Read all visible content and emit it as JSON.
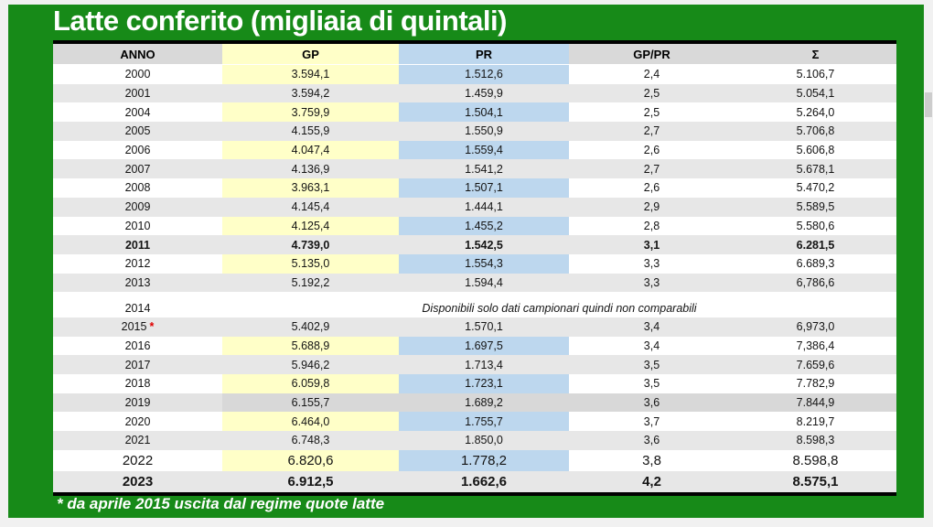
{
  "header": {
    "title": "Latte conferito (migliaia di quintali)"
  },
  "table": {
    "columns": [
      "ANNO",
      "GP",
      "PR",
      "GP/PR",
      "Σ"
    ],
    "rows": [
      {
        "anno": "2000",
        "gp": "3.594,1",
        "pr": "1.512,6",
        "gppr": "2,4",
        "sigma": "5.106,7",
        "shade": "w"
      },
      {
        "anno": "2001",
        "gp": "3.594,2",
        "pr": "1.459,9",
        "gppr": "2,5",
        "sigma": "5.054,1",
        "shade": "g"
      },
      {
        "anno": "2004",
        "gp": "3.759,9",
        "pr": "1.504,1",
        "gppr": "2,5",
        "sigma": "5.264,0",
        "shade": "w"
      },
      {
        "anno": "2005",
        "gp": "4.155,9",
        "pr": "1.550,9",
        "gppr": "2,7",
        "sigma": "5.706,8",
        "shade": "g"
      },
      {
        "anno": "2006",
        "gp": "4.047,4",
        "pr": "1.559,4",
        "gppr": "2,6",
        "sigma": "5.606,8",
        "shade": "w"
      },
      {
        "anno": "2007",
        "gp": "4.136,9",
        "pr": "1.541,2",
        "gppr": "2,7",
        "sigma": "5.678,1",
        "shade": "g"
      },
      {
        "anno": "2008",
        "gp": "3.963,1",
        "pr": "1.507,1",
        "gppr": "2,6",
        "sigma": "5.470,2",
        "shade": "w"
      },
      {
        "anno": "2009",
        "gp": "4.145,4",
        "pr": "1.444,1",
        "gppr": "2,9",
        "sigma": "5.589,5",
        "shade": "g"
      },
      {
        "anno": "2010",
        "gp": "4.125,4",
        "pr": "1.455,2",
        "gppr": "2,8",
        "sigma": "5.580,6",
        "shade": "w"
      },
      {
        "anno": "2011",
        "gp": "4.739,0",
        "pr": "1.542,5",
        "gppr": "3,1",
        "sigma": "6.281,5",
        "shade": "g",
        "bold": true
      },
      {
        "anno": "2012",
        "gp": "5.135,0",
        "pr": "1.554,3",
        "gppr": "3,3",
        "sigma": "6.689,3",
        "shade": "w"
      },
      {
        "anno": "2013",
        "gp": "5.192,2",
        "pr": "1.594,4",
        "gppr": "3,3",
        "sigma": "6,786,6",
        "shade": "g"
      },
      {
        "spacer": true
      },
      {
        "anno": "2014",
        "note": "Disponibili solo dati campionari quindi non comparabili",
        "shade": "w"
      },
      {
        "anno": "2015",
        "mark": "*",
        "gp": "5.402,9",
        "pr": "1.570,1",
        "gppr": "3,4",
        "sigma": "6,973,0",
        "shade": "g"
      },
      {
        "anno": "2016",
        "gp": "5.688,9",
        "pr": "1.697,5",
        "gppr": "3,4",
        "sigma": "7,386,4",
        "shade": "w"
      },
      {
        "anno": "2017",
        "gp": "5.946,2",
        "pr": "1.713,4",
        "gppr": "3,5",
        "sigma": "7.659,6",
        "shade": "g"
      },
      {
        "anno": "2018",
        "gp": "6.059,8",
        "pr": "1.723,1",
        "gppr": "3,5",
        "sigma": "7.782,9",
        "shade": "w"
      },
      {
        "anno": "2019",
        "gp": "6.155,7",
        "pr": "1.689,2",
        "gppr": "3,6",
        "sigma": "7.844,9",
        "shade": "d"
      },
      {
        "anno": "2020",
        "gp": "6.464,0",
        "pr": "1.755,7",
        "gppr": "3,7",
        "sigma": "8.219,7",
        "shade": "w"
      },
      {
        "anno": "2021",
        "gp": "6.748,3",
        "pr": "1.850,0",
        "gppr": "3,6",
        "sigma": "8.598,3",
        "shade": "g"
      },
      {
        "anno": "2022",
        "gp": "6.820,6",
        "pr": "1.778,2",
        "gppr": "3,8",
        "sigma": "8.598,8",
        "shade": "w",
        "large": true
      },
      {
        "anno": "2023",
        "gp": "6.912,5",
        "pr": "1.662,6",
        "gppr": "4,2",
        "sigma": "8.575,1",
        "shade": "g",
        "large": true,
        "bold": true
      }
    ],
    "footnote": "* da aprile 2015 uscita dal regime quote latte"
  },
  "colors": {
    "sheet_green": "#178a18",
    "header_gray": "#d9d9d9",
    "gp_yellow": "#ffffc8",
    "pr_blue": "#bdd7ee",
    "stripe_gray": "#e7e7e7",
    "darker_stripe_gray": "#d8d8d8",
    "asterisk_red": "#e00000",
    "outer_background": "#f1f1f1",
    "scrollbar_thumb": "#cdcdcd",
    "title_text": "#ffffff"
  }
}
